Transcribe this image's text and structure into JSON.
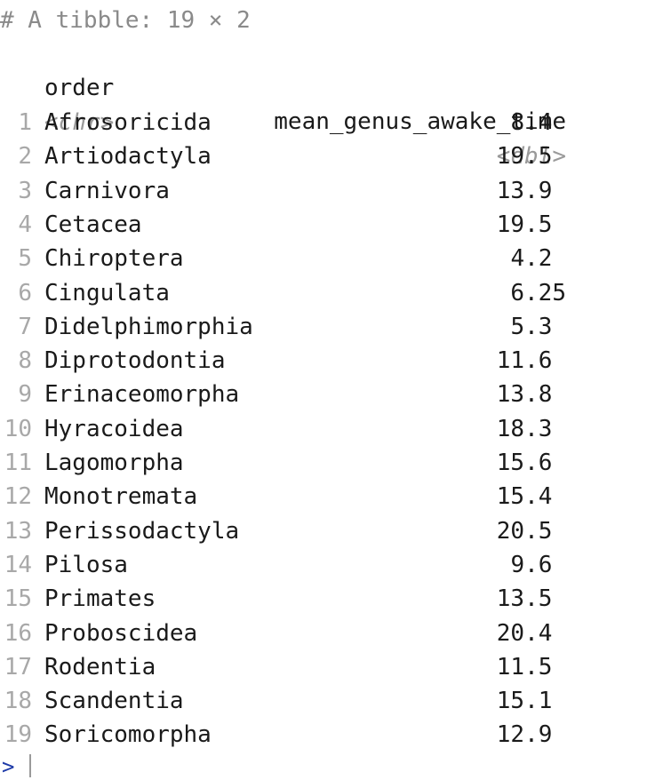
{
  "console": {
    "header_comment": "# A tibble: 19 × 2",
    "columns": [
      {
        "name": "order",
        "type": "<chr>"
      },
      {
        "name": "mean_genus_awake_time",
        "type": "<dbl>"
      }
    ],
    "rows": [
      {
        "n": "1",
        "order": "Afrosoricida",
        "value": "8.4"
      },
      {
        "n": "2",
        "order": "Artiodactyla",
        "value": "19.5"
      },
      {
        "n": "3",
        "order": "Carnivora",
        "value": "13.9"
      },
      {
        "n": "4",
        "order": "Cetacea",
        "value": "19.5"
      },
      {
        "n": "5",
        "order": "Chiroptera",
        "value": "4.2"
      },
      {
        "n": "6",
        "order": "Cingulata",
        "value": "6.25"
      },
      {
        "n": "7",
        "order": "Didelphimorphia",
        "value": "5.3"
      },
      {
        "n": "8",
        "order": "Diprotodontia",
        "value": "11.6"
      },
      {
        "n": "9",
        "order": "Erinaceomorpha",
        "value": "13.8"
      },
      {
        "n": "10",
        "order": "Hyracoidea",
        "value": "18.3"
      },
      {
        "n": "11",
        "order": "Lagomorpha",
        "value": "15.6"
      },
      {
        "n": "12",
        "order": "Monotremata",
        "value": "15.4"
      },
      {
        "n": "13",
        "order": "Perissodactyla",
        "value": "20.5"
      },
      {
        "n": "14",
        "order": "Pilosa",
        "value": "9.6"
      },
      {
        "n": "15",
        "order": "Primates",
        "value": "13.5"
      },
      {
        "n": "16",
        "order": "Proboscidea",
        "value": "20.4"
      },
      {
        "n": "17",
        "order": "Rodentia",
        "value": "11.5"
      },
      {
        "n": "18",
        "order": "Scandentia",
        "value": "15.1"
      },
      {
        "n": "19",
        "order": "Soricomorpha",
        "value": "12.9"
      }
    ],
    "prompt_symbol": ">"
  },
  "colors": {
    "prompt": "#1e3aa8",
    "comment": "#8a8a8a",
    "row_number": "#a8a8a8",
    "text": "#1a1a1a"
  }
}
